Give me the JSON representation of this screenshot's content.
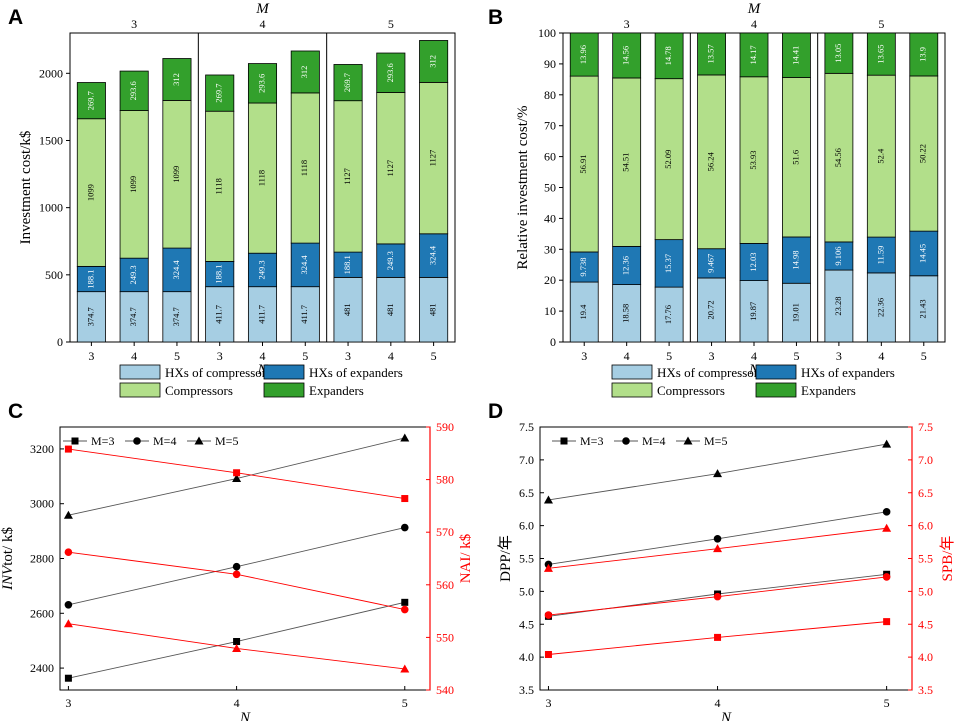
{
  "panels": {
    "A": {
      "letter": "A"
    },
    "B": {
      "letter": "B"
    },
    "C": {
      "letter": "C"
    },
    "D": {
      "letter": "D"
    }
  },
  "colors": {
    "hx_comp": "#a6cee3",
    "hx_exp": "#1f78b4",
    "compressors": "#b2df8a",
    "expanders": "#33a02c",
    "red": "#ff0000",
    "gray": "#555555"
  },
  "chart_data": [
    {
      "id": "A",
      "type": "bar",
      "stacked": true,
      "top_label": "M",
      "group_labels": [
        "3",
        "4",
        "5"
      ],
      "categories": [
        "3",
        "4",
        "5",
        "3",
        "4",
        "5",
        "3",
        "4",
        "5"
      ],
      "xlabel": "N",
      "ylabel": "Investment cost/k$",
      "ylim": [
        0,
        2300
      ],
      "yticks": [
        0,
        500,
        1000,
        1500,
        2000
      ],
      "series": [
        {
          "name": "HXs of compressors",
          "values": [
            374.7,
            374.7,
            374.7,
            411.7,
            411.7,
            411.7,
            481,
            481,
            481
          ],
          "labels": [
            "374.7",
            "374.7",
            "374.7",
            "411.7",
            "411.7",
            "411.7",
            "481",
            "481",
            "481"
          ]
        },
        {
          "name": "HXs of expanders",
          "values": [
            188.1,
            249.3,
            324.4,
            188.1,
            249.3,
            324.4,
            188.1,
            249.3,
            324.4
          ],
          "labels": [
            "188.1",
            "249.3",
            "324.4",
            "188.1",
            "249.3",
            "324.4",
            "188.1",
            "249.3",
            "324.4"
          ]
        },
        {
          "name": "Compressors",
          "values": [
            1099,
            1099,
            1099,
            1118,
            1118,
            1118,
            1127,
            1127,
            1127
          ],
          "labels": [
            "1099",
            "1099",
            "1099",
            "1118",
            "1118",
            "1118",
            "1127",
            "1127",
            "1127"
          ]
        },
        {
          "name": "Expanders",
          "values": [
            269.7,
            293.6,
            312,
            269.7,
            293.6,
            312,
            269.7,
            293.6,
            312
          ],
          "labels": [
            "269.7",
            "293.6",
            "312",
            "269.7",
            "293.6",
            "312",
            "269.7",
            "293.6",
            "312"
          ]
        }
      ],
      "legend": [
        "HXs of compressors",
        "HXs of expanders",
        "Compressors",
        "Expanders"
      ]
    },
    {
      "id": "B",
      "type": "bar",
      "stacked": true,
      "top_label": "M",
      "group_labels": [
        "3",
        "4",
        "5"
      ],
      "categories": [
        "3",
        "4",
        "5",
        "3",
        "4",
        "5",
        "3",
        "4",
        "5"
      ],
      "xlabel": "N",
      "ylabel": "Relative investment cost/%",
      "ylim": [
        0,
        100
      ],
      "yticks": [
        0,
        10,
        20,
        30,
        40,
        50,
        60,
        70,
        80,
        90,
        100
      ],
      "series": [
        {
          "name": "HXs of compressors",
          "values": [
            19.4,
            18.58,
            17.76,
            20.72,
            19.87,
            19.01,
            23.28,
            22.36,
            21.43
          ],
          "labels": [
            "19.4",
            "18.58",
            "17.76",
            "20.72",
            "19.87",
            "19.01",
            "23.28",
            "22.36",
            "21.43"
          ]
        },
        {
          "name": "HXs of expanders",
          "values": [
            9.738,
            12.36,
            15.37,
            9.467,
            12.03,
            14.98,
            9.106,
            11.59,
            14.45
          ],
          "labels": [
            "9.738",
            "12.36",
            "15.37",
            "9.467",
            "12.03",
            "14.98",
            "9.106",
            "11.59",
            "14.45"
          ]
        },
        {
          "name": "Compressors",
          "values": [
            56.91,
            54.51,
            52.09,
            56.24,
            53.93,
            51.6,
            54.56,
            52.4,
            50.22
          ],
          "labels": [
            "56.91",
            "54.51",
            "52.09",
            "56.24",
            "53.93",
            "51.6",
            "54.56",
            "52.4",
            "50.22"
          ]
        },
        {
          "name": "Expanders",
          "values": [
            13.96,
            14.56,
            14.78,
            13.57,
            14.17,
            14.41,
            13.05,
            13.65,
            13.9
          ],
          "labels": [
            "13.96",
            "14.56",
            "14.78",
            "13.57",
            "14.17",
            "14.41",
            "13.05",
            "13.65",
            "13.9"
          ]
        }
      ],
      "legend": [
        "HXs of compressors",
        "HXs of expanders",
        "Compressors",
        "Expanders"
      ]
    },
    {
      "id": "C",
      "type": "line",
      "x": [
        3,
        4,
        5
      ],
      "xticks": [
        "3",
        "4",
        "5"
      ],
      "xlim": [
        2.95,
        5.15
      ],
      "xlabel": "N",
      "ylabel_left": {
        "italic": "INV",
        "rest": "tot/ k$"
      },
      "ylabel_right": "NAI/ k$",
      "ylim_left": [
        2320,
        3280
      ],
      "ylim_right": [
        540,
        590
      ],
      "yticks_left": [
        2400,
        2600,
        2800,
        3000,
        3200
      ],
      "yticks_right": [
        540,
        550,
        560,
        570,
        580,
        590
      ],
      "series": [
        {
          "name": "M=3",
          "axis": "left",
          "marker": "square",
          "values": [
            2363,
            2497,
            2640
          ]
        },
        {
          "name": "M=4",
          "axis": "left",
          "marker": "circle",
          "values": [
            2631,
            2770,
            2913
          ]
        },
        {
          "name": "M=5",
          "axis": "left",
          "marker": "triangle",
          "values": [
            2958,
            3092,
            3240
          ]
        },
        {
          "name": "M=3",
          "axis": "right",
          "marker": "square",
          "values": [
            585.8,
            581.3,
            576.4
          ]
        },
        {
          "name": "M=4",
          "axis": "right",
          "marker": "circle",
          "values": [
            566.2,
            562.0,
            555.3
          ]
        },
        {
          "name": "M=5",
          "axis": "right",
          "marker": "triangle",
          "values": [
            552.6,
            547.9,
            544.0
          ]
        }
      ],
      "legend": [
        "M=3",
        "M=4",
        "M=5"
      ]
    },
    {
      "id": "D",
      "type": "line",
      "x": [
        3,
        4,
        5
      ],
      "xticks": [
        "3",
        "4",
        "5"
      ],
      "xlim": [
        2.95,
        5.15
      ],
      "xlabel": "N",
      "ylabel_left": "DPP/年",
      "ylabel_right": "SPB/年",
      "ylim_left": [
        3.5,
        7.5
      ],
      "ylim_right": [
        3.5,
        7.5
      ],
      "yticks_left": [
        "3.5",
        "4.0",
        "4.5",
        "5.0",
        "5.5",
        "6.0",
        "6.5",
        "7.0",
        "7.5"
      ],
      "yticks_right": [
        "3.5",
        "4.0",
        "4.5",
        "5.0",
        "5.5",
        "6.0",
        "6.5",
        "7.0",
        "7.5"
      ],
      "series": [
        {
          "name": "M=3",
          "axis": "left",
          "marker": "square",
          "values": [
            4.62,
            4.96,
            5.26
          ]
        },
        {
          "name": "M=4",
          "axis": "left",
          "marker": "circle",
          "values": [
            5.41,
            5.8,
            6.21
          ]
        },
        {
          "name": "M=5",
          "axis": "left",
          "marker": "triangle",
          "values": [
            6.39,
            6.79,
            7.24
          ]
        },
        {
          "name": "M=3",
          "axis": "right",
          "marker": "square",
          "values": [
            4.04,
            4.3,
            4.54
          ]
        },
        {
          "name": "M=4",
          "axis": "right",
          "marker": "circle",
          "values": [
            4.64,
            4.92,
            5.22
          ]
        },
        {
          "name": "M=5",
          "axis": "right",
          "marker": "triangle",
          "values": [
            5.35,
            5.65,
            5.96
          ]
        }
      ],
      "legend": [
        "M=3",
        "M=4",
        "M=5"
      ]
    }
  ]
}
